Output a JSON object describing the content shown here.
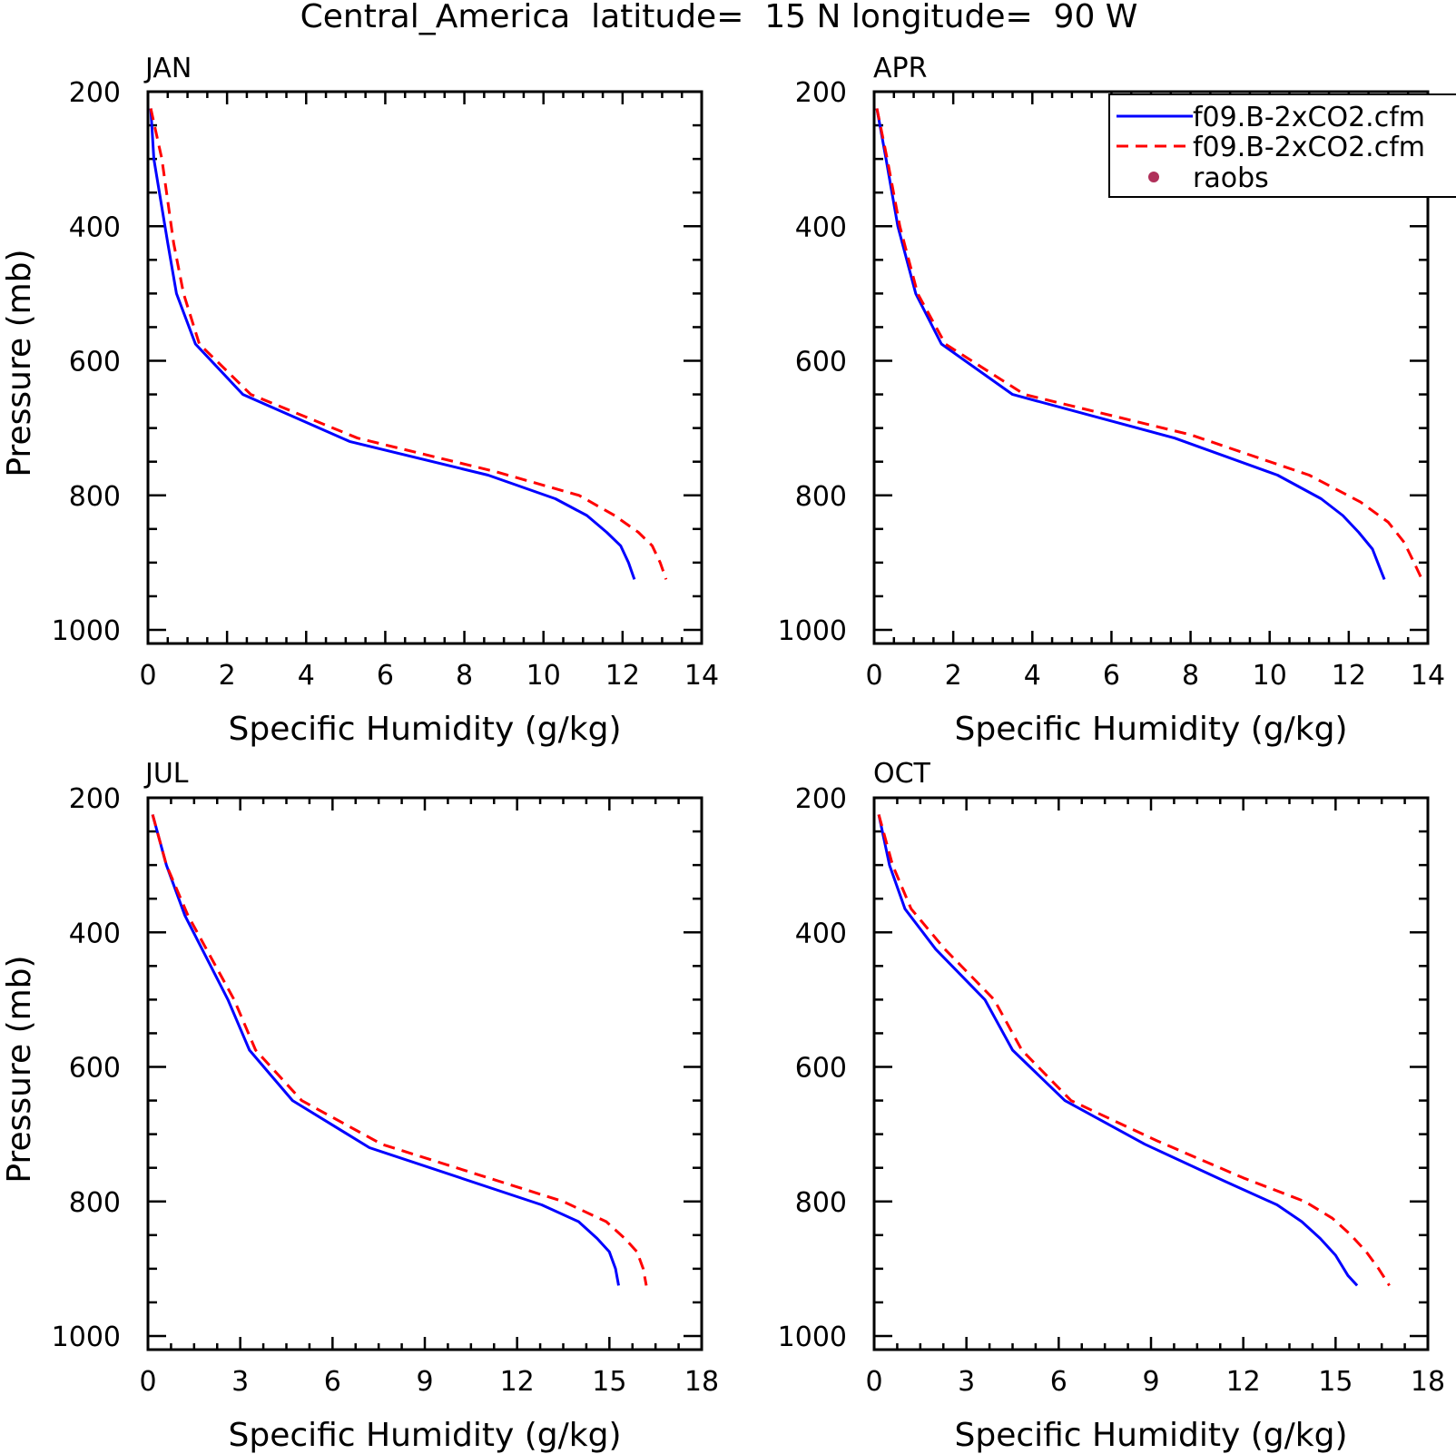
{
  "figure_title": "Central_America  latitude=  15 N longitude=  90 W",
  "colors": {
    "solid_series": "#0000ff",
    "dashed_series": "#ff0000",
    "raobs_marker": "#b0305a"
  },
  "legend": {
    "placement": "top-right of APR panel",
    "entries": [
      {
        "label": "f09.B-2xCO2.cfm",
        "style": "solid",
        "color": "#0000ff"
      },
      {
        "label": "f09.B-2xCO2.cfm",
        "style": "dashed",
        "color": "#ff0000"
      },
      {
        "label": "raobs",
        "style": "dot",
        "color": "#b0305a"
      }
    ]
  },
  "chart_data": [
    {
      "type": "line",
      "panel_label": "JAN",
      "xlabel": "Specific Humidity (g/kg)",
      "ylabel": "Pressure (mb)",
      "xlim": [
        0,
        14
      ],
      "ylim": [
        1000,
        200
      ],
      "y_inverted": true,
      "xticks": [
        0,
        2,
        4,
        6,
        8,
        10,
        12,
        14
      ],
      "yticks": [
        200,
        400,
        600,
        800,
        1000
      ],
      "grid": false,
      "series": [
        {
          "style": "solid",
          "color": "#0000ff",
          "x": [
            0.07,
            0.15,
            0.5,
            0.72,
            1.2,
            2.4,
            5.1,
            8.6,
            10.3,
            11.1,
            11.6,
            11.95,
            12.15,
            12.3
          ],
          "y": [
            225,
            300,
            425,
            500,
            575,
            650,
            720,
            770,
            805,
            830,
            855,
            875,
            900,
            925
          ]
        },
        {
          "style": "dashed",
          "color": "#ff0000",
          "x": [
            0.07,
            0.35,
            0.65,
            0.9,
            1.3,
            2.6,
            5.3,
            8.8,
            10.9,
            11.8,
            12.4,
            12.75,
            12.95,
            13.1
          ],
          "y": [
            225,
            300,
            425,
            500,
            575,
            650,
            715,
            765,
            800,
            830,
            855,
            875,
            900,
            925
          ]
        }
      ]
    },
    {
      "type": "line",
      "panel_label": "APR",
      "xlabel": "Specific Humidity (g/kg)",
      "ylabel": "",
      "xlim": [
        0,
        14
      ],
      "ylim": [
        1000,
        200
      ],
      "y_inverted": true,
      "xticks": [
        0,
        2,
        4,
        6,
        8,
        10,
        12,
        14
      ],
      "yticks": [
        200,
        400,
        600,
        800,
        1000
      ],
      "grid": false,
      "series": [
        {
          "style": "solid",
          "color": "#0000ff",
          "x": [
            0.07,
            0.3,
            0.6,
            1.05,
            1.7,
            3.5,
            7.6,
            10.2,
            11.3,
            11.85,
            12.25,
            12.6,
            12.8,
            12.9
          ],
          "y": [
            225,
            300,
            400,
            500,
            575,
            650,
            715,
            770,
            805,
            830,
            855,
            880,
            910,
            925
          ]
        },
        {
          "style": "dashed",
          "color": "#ff0000",
          "x": [
            0.07,
            0.33,
            0.65,
            1.1,
            1.8,
            3.8,
            8.0,
            11.0,
            12.3,
            13.0,
            13.4,
            13.65,
            13.85
          ],
          "y": [
            225,
            300,
            400,
            500,
            575,
            650,
            710,
            770,
            810,
            840,
            870,
            900,
            925
          ]
        }
      ]
    },
    {
      "type": "line",
      "panel_label": "JUL",
      "xlabel": "Specific Humidity (g/kg)",
      "ylabel": "Pressure (mb)",
      "xlim": [
        0,
        18
      ],
      "ylim": [
        1000,
        200
      ],
      "y_inverted": true,
      "xticks": [
        0,
        3,
        6,
        9,
        12,
        15,
        18
      ],
      "yticks": [
        200,
        400,
        600,
        800,
        1000
      ],
      "grid": false,
      "series": [
        {
          "style": "solid",
          "color": "#0000ff",
          "x": [
            0.15,
            0.6,
            1.2,
            2.6,
            3.3,
            4.7,
            7.2,
            12.8,
            14.0,
            14.6,
            15.0,
            15.2,
            15.3
          ],
          "y": [
            225,
            300,
            375,
            500,
            575,
            650,
            720,
            805,
            830,
            855,
            875,
            900,
            925
          ]
        },
        {
          "style": "dashed",
          "color": "#ff0000",
          "x": [
            0.15,
            0.6,
            1.3,
            2.8,
            3.5,
            5.0,
            7.6,
            13.5,
            14.9,
            15.5,
            15.9,
            16.1,
            16.2
          ],
          "y": [
            225,
            300,
            375,
            500,
            575,
            650,
            715,
            800,
            830,
            855,
            875,
            900,
            925
          ]
        }
      ]
    },
    {
      "type": "line",
      "panel_label": "OCT",
      "xlabel": "Specific Humidity (g/kg)",
      "ylabel": "",
      "xlim": [
        0,
        18
      ],
      "ylim": [
        1000,
        200
      ],
      "y_inverted": true,
      "xticks": [
        0,
        3,
        6,
        9,
        12,
        15,
        18
      ],
      "yticks": [
        200,
        400,
        600,
        800,
        1000
      ],
      "grid": false,
      "series": [
        {
          "style": "solid",
          "color": "#0000ff",
          "x": [
            0.15,
            0.5,
            1.0,
            2.0,
            3.6,
            4.5,
            6.2,
            8.8,
            11.4,
            13.1,
            13.9,
            14.5,
            15.0,
            15.4,
            15.7
          ],
          "y": [
            225,
            300,
            365,
            425,
            500,
            575,
            650,
            715,
            770,
            805,
            830,
            855,
            880,
            910,
            925
          ]
        },
        {
          "style": "dashed",
          "color": "#ff0000",
          "x": [
            0.15,
            0.6,
            1.2,
            2.3,
            3.9,
            4.8,
            6.4,
            9.2,
            12.0,
            14.0,
            14.9,
            15.5,
            16.0,
            16.4,
            16.75
          ],
          "y": [
            225,
            300,
            365,
            425,
            500,
            575,
            650,
            710,
            765,
            800,
            825,
            850,
            875,
            900,
            925
          ]
        }
      ]
    }
  ]
}
